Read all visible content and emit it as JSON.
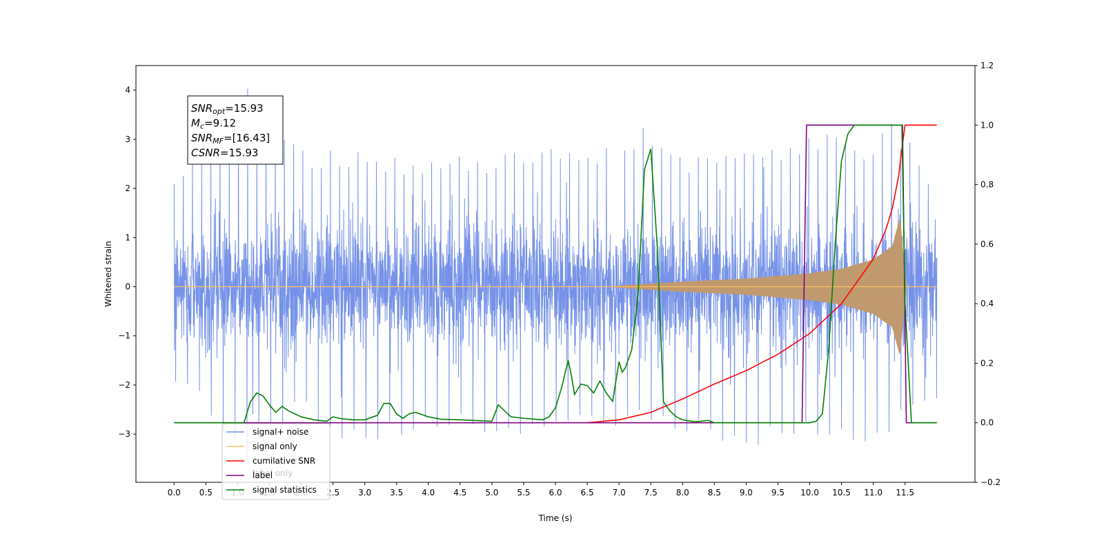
{
  "chart_data": {
    "type": "line",
    "title": "",
    "xlabel": "Time (s)",
    "ylabel": "Whitened strain",
    "xlim": [
      -0.6,
      12.6
    ],
    "ylim": [
      -3.98,
      4.5
    ],
    "y2lim": [
      -0.2,
      1.2
    ],
    "x_ticks": [
      "0.0",
      "0.5",
      "1.0",
      "1.5",
      "2.0",
      "2.5",
      "3.0",
      "3.5",
      "4.0",
      "4.5",
      "5.0",
      "5.5",
      "6.0",
      "6.5",
      "7.0",
      "7.5",
      "8.0",
      "8.5",
      "9.0",
      "9.5",
      "10.0",
      "10.5",
      "11.0",
      "11.5"
    ],
    "y_ticks": [
      "−3",
      "−2",
      "−1",
      "0",
      "1",
      "2",
      "3",
      "4"
    ],
    "y2_ticks": [
      "−0.2",
      "0.0",
      "0.2",
      "0.4",
      "0.6",
      "0.8",
      "1.0",
      "1.2"
    ],
    "grid": false,
    "legend_position": "lower-left",
    "annotation": [
      {
        "symbol": "SNR",
        "sub": "opt",
        "value": "=15.93"
      },
      {
        "symbol": "M",
        "sub": "c",
        "value": "=9.12"
      },
      {
        "symbol": "SNR",
        "sub": "MF",
        "value": "=[16.43]"
      },
      {
        "symbol": "CSNR",
        "sub": "",
        "value": "=15.93"
      }
    ],
    "legend": [
      {
        "label": "signal+ noise",
        "color": "#7692e8"
      },
      {
        "label": "signal only",
        "color": "#ffbf66"
      },
      {
        "label": "cumilative SNR",
        "color": "#ff0000"
      },
      {
        "label": "label",
        "color": "#800080"
      },
      {
        "label": "signal statistics",
        "color": "#008000"
      }
    ],
    "hidden_legend_text": "label only",
    "noise_envelope": {
      "x": [
        0,
        1.15,
        2.0,
        3.0,
        4.0,
        5.0,
        6.0,
        7.0,
        7.35,
        8.0,
        9.0,
        10.0,
        11.0,
        11.25,
        12.0
      ],
      "upper": [
        2.25,
        4.12,
        2.85,
        2.75,
        2.65,
        2.7,
        2.85,
        2.95,
        3.35,
        2.7,
        2.75,
        3.2,
        2.95,
        3.55,
        2.2
      ],
      "lower": [
        -1.9,
        -3.6,
        -2.6,
        -3.35,
        -2.95,
        -3.1,
        -2.95,
        -3.0,
        -2.9,
        -3.0,
        -3.4,
        -3.05,
        -3.3,
        -3.05,
        -2.5
      ]
    },
    "signal_envelope": {
      "x": [
        6.8,
        7.5,
        8.0,
        9.0,
        10.0,
        10.5,
        11.0,
        11.3,
        11.42,
        11.48,
        11.52
      ],
      "amp": [
        0.0,
        0.06,
        0.1,
        0.16,
        0.27,
        0.36,
        0.55,
        0.82,
        1.4,
        0.55,
        0.0
      ]
    },
    "series": [
      {
        "name": "cumilative SNR",
        "axis": "right",
        "color": "#ff0000",
        "x": [
          6.5,
          7.0,
          7.5,
          8.0,
          8.5,
          9.0,
          9.5,
          10.0,
          10.5,
          11.0,
          11.2,
          11.3,
          11.4,
          11.45,
          11.5,
          11.6,
          11.7,
          12.0
        ],
        "y": [
          0.0,
          0.01,
          0.035,
          0.08,
          0.13,
          0.175,
          0.23,
          0.3,
          0.4,
          0.55,
          0.65,
          0.72,
          0.83,
          0.92,
          1.0,
          1.0,
          1.0,
          1.0
        ]
      },
      {
        "name": "label",
        "axis": "right",
        "color": "#800080",
        "x": [
          0.0,
          9.88,
          9.95,
          11.46,
          11.52,
          12.0
        ],
        "y": [
          0.0,
          0.0,
          1.0,
          1.0,
          0.0,
          0.0
        ]
      },
      {
        "name": "signal statistics",
        "axis": "right",
        "color": "#008000",
        "x": [
          0.0,
          1.1,
          1.2,
          1.3,
          1.4,
          1.5,
          1.6,
          1.7,
          1.8,
          2.0,
          2.2,
          2.4,
          2.5,
          2.6,
          2.8,
          3.0,
          3.2,
          3.3,
          3.4,
          3.5,
          3.6,
          3.7,
          3.8,
          4.0,
          4.2,
          4.5,
          5.0,
          5.1,
          5.2,
          5.3,
          5.5,
          5.8,
          5.9,
          6.0,
          6.1,
          6.2,
          6.25,
          6.3,
          6.4,
          6.5,
          6.6,
          6.7,
          6.8,
          6.9,
          7.0,
          7.05,
          7.1,
          7.2,
          7.3,
          7.4,
          7.5,
          7.6,
          7.7,
          7.8,
          7.9,
          8.0,
          8.2,
          8.4,
          8.5,
          10.0,
          10.1,
          10.2,
          10.3,
          10.4,
          10.5,
          10.6,
          10.7,
          10.8,
          11.45,
          11.5,
          11.6,
          12.0
        ],
        "y": [
          0.0,
          0.0,
          0.07,
          0.1,
          0.09,
          0.06,
          0.035,
          0.055,
          0.04,
          0.02,
          0.01,
          0.005,
          0.02,
          0.015,
          0.01,
          0.01,
          0.025,
          0.065,
          0.065,
          0.03,
          0.015,
          0.03,
          0.035,
          0.02,
          0.012,
          0.01,
          0.005,
          0.06,
          0.04,
          0.02,
          0.015,
          0.01,
          0.02,
          0.05,
          0.12,
          0.21,
          0.16,
          0.095,
          0.13,
          0.125,
          0.1,
          0.14,
          0.1,
          0.072,
          0.205,
          0.17,
          0.185,
          0.245,
          0.43,
          0.85,
          0.92,
          0.6,
          0.07,
          0.04,
          0.02,
          0.01,
          0.003,
          0.008,
          0.0,
          0.0,
          0.005,
          0.03,
          0.25,
          0.6,
          0.88,
          0.97,
          1.0,
          1.0,
          1.0,
          0.4,
          0.0,
          0.0
        ]
      }
    ]
  }
}
